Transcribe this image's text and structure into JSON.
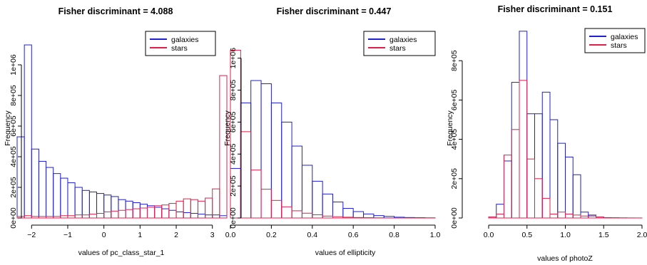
{
  "colors": {
    "galaxies": "#1f1fd6",
    "stars": "#e0204a"
  },
  "chart_data": [
    {
      "type": "bar",
      "title": "Fisher discriminant = 4.088",
      "xlabel": "values of pc_class_star_1",
      "ylabel": "Frequency",
      "x_bin_edges": [
        -2.4,
        -2.2,
        -2.0,
        -1.8,
        -1.6,
        -1.4,
        -1.2,
        -1.0,
        -0.8,
        -0.6,
        -0.4,
        -0.2,
        0.0,
        0.2,
        0.4,
        0.6,
        0.8,
        1.0,
        1.2,
        1.4,
        1.6,
        1.8,
        2.0,
        2.2,
        2.4,
        2.6,
        2.8,
        3.0,
        3.2,
        3.4
      ],
      "xlim": [
        -2.4,
        3.4
      ],
      "ylim": [
        0,
        1200000
      ],
      "x_ticks": [
        -2,
        -1,
        0,
        1,
        2,
        3
      ],
      "x_tick_labels": [
        "−2",
        "−1",
        "0",
        "1",
        "2",
        "3"
      ],
      "y_ticks": [
        0,
        200000,
        400000,
        600000,
        800000,
        1000000
      ],
      "y_tick_labels": [
        "0e+00",
        "2e+05",
        "4e+05",
        "6e+05",
        "8e+05",
        "1e+06"
      ],
      "legend_position": "top-right",
      "series": [
        {
          "name": "galaxies",
          "values": [
            530000,
            1130000,
            450000,
            370000,
            330000,
            290000,
            260000,
            230000,
            200000,
            180000,
            170000,
            160000,
            150000,
            140000,
            120000,
            110000,
            100000,
            90000,
            80000,
            70000,
            60000,
            50000,
            40000,
            35000,
            30000,
            25000,
            20000,
            20000,
            15000
          ]
        },
        {
          "name": "stars",
          "values": [
            10000,
            15000,
            10000,
            10000,
            10000,
            10000,
            15000,
            15000,
            20000,
            20000,
            25000,
            30000,
            40000,
            45000,
            50000,
            55000,
            60000,
            65000,
            70000,
            80000,
            85000,
            95000,
            110000,
            125000,
            120000,
            110000,
            130000,
            190000,
            930000
          ]
        }
      ]
    },
    {
      "type": "bar",
      "title": "Fisher discriminant = 0.447",
      "xlabel": "values of ellipticity",
      "ylabel": "Frequency",
      "x_bin_edges": [
        0.0,
        0.05,
        0.1,
        0.15,
        0.2,
        0.25,
        0.3,
        0.35,
        0.4,
        0.45,
        0.5,
        0.55,
        0.6,
        0.65,
        0.7,
        0.75,
        0.8,
        0.85,
        0.9,
        0.95,
        1.0
      ],
      "xlim": [
        0,
        1
      ],
      "ylim": [
        0,
        1150000
      ],
      "x_ticks": [
        0,
        0.2,
        0.4,
        0.6,
        0.8,
        1.0
      ],
      "x_tick_labels": [
        "0.0",
        "0.2",
        "0.4",
        "0.6",
        "0.8",
        "1.0"
      ],
      "y_ticks": [
        0,
        200000,
        400000,
        600000,
        800000,
        1000000
      ],
      "y_tick_labels": [
        "0e+00",
        "2e+05",
        "4e+05",
        "6e+05",
        "8e+05",
        "1e+06"
      ],
      "legend_position": "top-right",
      "series": [
        {
          "name": "galaxies",
          "values": [
            310000,
            720000,
            860000,
            840000,
            720000,
            600000,
            450000,
            330000,
            230000,
            150000,
            100000,
            60000,
            40000,
            25000,
            15000,
            10000,
            5000,
            3000,
            2000,
            1000
          ]
        },
        {
          "name": "stars",
          "values": [
            1050000,
            540000,
            300000,
            180000,
            110000,
            70000,
            45000,
            30000,
            20000,
            12000,
            8000,
            5000,
            3000,
            2000,
            1000,
            500,
            300,
            200,
            100,
            50
          ]
        }
      ]
    },
    {
      "type": "bar",
      "title": "Fisher discriminant = 0.151",
      "xlabel": "values of photoZ",
      "ylabel": "Frequency",
      "x_bin_edges": [
        0.0,
        0.1,
        0.2,
        0.3,
        0.4,
        0.5,
        0.6,
        0.7,
        0.8,
        0.9,
        1.0,
        1.1,
        1.2,
        1.3,
        1.4,
        1.5,
        1.6,
        1.7,
        1.8,
        1.9,
        2.0
      ],
      "xlim": [
        0,
        2
      ],
      "ylim": [
        0,
        1000000
      ],
      "x_ticks": [
        0,
        0.5,
        1.0,
        1.5,
        2.0
      ],
      "x_tick_labels": [
        "0.0",
        "0.5",
        "1.0",
        "1.5",
        "2.0"
      ],
      "y_ticks": [
        0,
        200000,
        400000,
        600000,
        800000
      ],
      "y_tick_labels": [
        "0e+00",
        "2e+05",
        "4e+05",
        "6e+05",
        "8e+05"
      ],
      "legend_position": "top-right",
      "series": [
        {
          "name": "galaxies",
          "values": [
            5000,
            70000,
            290000,
            690000,
            950000,
            530000,
            530000,
            640000,
            500000,
            380000,
            310000,
            220000,
            30000,
            15000,
            5000,
            2000,
            1000,
            500,
            200,
            100
          ]
        },
        {
          "name": "stars",
          "values": [
            5000,
            20000,
            320000,
            450000,
            700000,
            300000,
            200000,
            100000,
            20000,
            30000,
            20000,
            15000,
            10000,
            10000,
            5000,
            2000,
            1000,
            500,
            200,
            100
          ]
        }
      ]
    }
  ]
}
